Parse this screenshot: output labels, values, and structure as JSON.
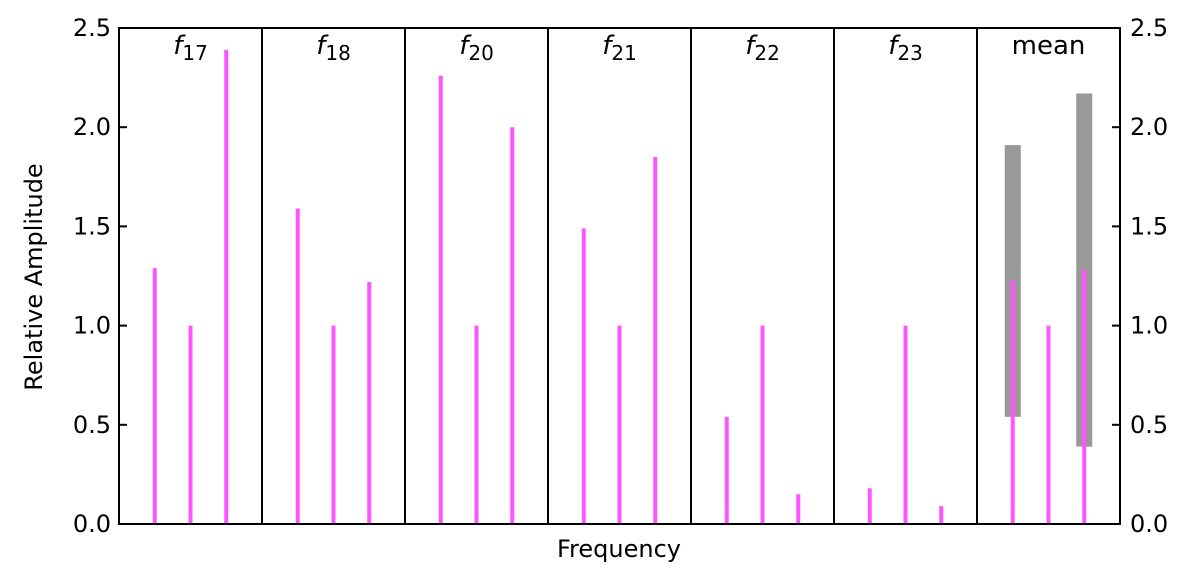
{
  "chart_data": {
    "type": "bar",
    "xlabel": "Frequency",
    "ylabel": "Relative Amplitude",
    "ylim": [
      0,
      2.5
    ],
    "yticks": [
      0.0,
      0.5,
      1.0,
      1.5,
      2.0,
      2.5
    ],
    "ytick_labels": [
      "0.0",
      "0.5",
      "1.0",
      "1.5",
      "2.0",
      "2.5"
    ],
    "right_axis_ticks": true,
    "grid": false,
    "line_color": "#ff55ff",
    "range_color": "#999999",
    "panels": [
      {
        "label_base": "f",
        "label_sub": "17",
        "label_text": "",
        "values": [
          1.29,
          1.0,
          2.39
        ]
      },
      {
        "label_base": "f",
        "label_sub": "18",
        "label_text": "",
        "values": [
          1.59,
          1.0,
          1.22
        ]
      },
      {
        "label_base": "f",
        "label_sub": "20",
        "label_text": "",
        "values": [
          2.26,
          1.0,
          2.0
        ]
      },
      {
        "label_base": "f",
        "label_sub": "21",
        "label_text": "",
        "values": [
          1.49,
          1.0,
          1.85
        ]
      },
      {
        "label_base": "f",
        "label_sub": "22",
        "label_text": "",
        "values": [
          0.54,
          1.0,
          0.15
        ]
      },
      {
        "label_base": "f",
        "label_sub": "23",
        "label_text": "",
        "values": [
          0.18,
          1.0,
          0.09
        ]
      },
      {
        "label_base": "",
        "label_sub": "",
        "label_text": "mean",
        "values": [
          1.23,
          1.0,
          1.28
        ],
        "ranges": [
          [
            0.54,
            1.91
          ],
          null,
          [
            0.39,
            2.17
          ]
        ]
      }
    ]
  }
}
